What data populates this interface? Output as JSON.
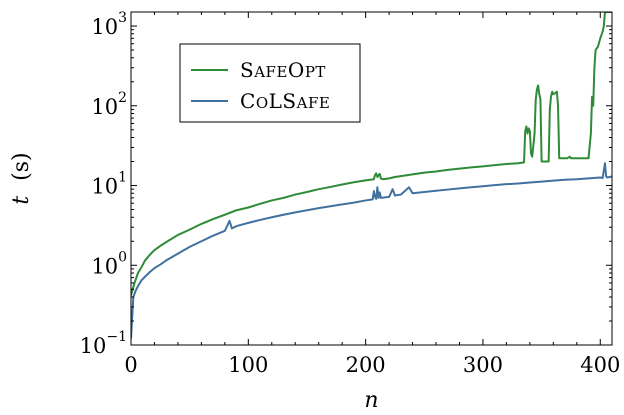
{
  "chart_data": {
    "type": "line",
    "xlabel": "n",
    "ylabel_var": "t",
    "ylabel_unit": "(s)",
    "xlim": [
      0,
      410
    ],
    "ylim": [
      0.1,
      1500
    ],
    "yscale": "log",
    "grid": false,
    "legend_position": "top-left",
    "x_ticks": [
      {
        "value": 0,
        "label": "0"
      },
      {
        "value": 100,
        "label": "100"
      },
      {
        "value": 200,
        "label": "200"
      },
      {
        "value": 300,
        "label": "300"
      },
      {
        "value": 400,
        "label": "400"
      }
    ],
    "y_ticks": [
      {
        "value": 0.1,
        "base": "10",
        "exp": "−1"
      },
      {
        "value": 1,
        "base": "10",
        "exp": "0"
      },
      {
        "value": 10,
        "base": "10",
        "exp": "1"
      },
      {
        "value": 100,
        "base": "10",
        "exp": "2"
      },
      {
        "value": 1000,
        "base": "10",
        "exp": "3"
      }
    ],
    "series": [
      {
        "name": "SafeOpt",
        "color": "#2e8b37",
        "points": [
          [
            0,
            0.42
          ],
          [
            3,
            0.6
          ],
          [
            6,
            0.8
          ],
          [
            9,
            0.95
          ],
          [
            12,
            1.15
          ],
          [
            16,
            1.35
          ],
          [
            20,
            1.55
          ],
          [
            25,
            1.75
          ],
          [
            30,
            1.95
          ],
          [
            40,
            2.4
          ],
          [
            50,
            2.8
          ],
          [
            60,
            3.3
          ],
          [
            70,
            3.8
          ],
          [
            80,
            4.3
          ],
          [
            90,
            4.9
          ],
          [
            100,
            5.3
          ],
          [
            110,
            5.9
          ],
          [
            120,
            6.5
          ],
          [
            130,
            7.0
          ],
          [
            140,
            7.7
          ],
          [
            150,
            8.3
          ],
          [
            160,
            9.0
          ],
          [
            170,
            9.6
          ],
          [
            180,
            10.3
          ],
          [
            190,
            11.0
          ],
          [
            200,
            11.6
          ],
          [
            207,
            12.0
          ],
          [
            208,
            13.5
          ],
          [
            209,
            14.2
          ],
          [
            210,
            12.8
          ],
          [
            212,
            14.0
          ],
          [
            213,
            12.2
          ],
          [
            215,
            12.0
          ],
          [
            220,
            12.3
          ],
          [
            225,
            12.8
          ],
          [
            230,
            13.1
          ],
          [
            240,
            13.8
          ],
          [
            250,
            14.5
          ],
          [
            260,
            15.0
          ],
          [
            270,
            15.7
          ],
          [
            280,
            16.3
          ],
          [
            290,
            16.9
          ],
          [
            300,
            17.4
          ],
          [
            310,
            18.0
          ],
          [
            320,
            18.6
          ],
          [
            330,
            19.0
          ],
          [
            335,
            19.5
          ],
          [
            336,
            48
          ],
          [
            337,
            55
          ],
          [
            338,
            45
          ],
          [
            339,
            52
          ],
          [
            340,
            48
          ],
          [
            341,
            25
          ],
          [
            342,
            23
          ],
          [
            343,
            32
          ],
          [
            344,
            45
          ],
          [
            345,
            120
          ],
          [
            346,
            160
          ],
          [
            347,
            180
          ],
          [
            348,
            140
          ],
          [
            349,
            120
          ],
          [
            350,
            20
          ],
          [
            352,
            20
          ],
          [
            356,
            20
          ],
          [
            357,
            90
          ],
          [
            358,
            130
          ],
          [
            359,
            150
          ],
          [
            360,
            140
          ],
          [
            362,
            145
          ],
          [
            363,
            150
          ],
          [
            364,
            100
          ],
          [
            365,
            22
          ],
          [
            367,
            22
          ],
          [
            369,
            22
          ],
          [
            372,
            22
          ],
          [
            374,
            23
          ],
          [
            375,
            22
          ],
          [
            380,
            22
          ],
          [
            390,
            22
          ],
          [
            392,
            45
          ],
          [
            393,
            130
          ],
          [
            394,
            100
          ],
          [
            395,
            300
          ],
          [
            396,
            500
          ],
          [
            398,
            550
          ],
          [
            400,
            700
          ],
          [
            402,
            850
          ],
          [
            403,
            1000
          ],
          [
            404,
            1500
          ],
          [
            410,
            1500
          ]
        ]
      },
      {
        "name": "ColSafe",
        "color": "#41729f",
        "points": [
          [
            0,
            0.12
          ],
          [
            2,
            0.4
          ],
          [
            4,
            0.48
          ],
          [
            6,
            0.55
          ],
          [
            9,
            0.65
          ],
          [
            12,
            0.72
          ],
          [
            16,
            0.82
          ],
          [
            20,
            0.92
          ],
          [
            25,
            1.02
          ],
          [
            30,
            1.15
          ],
          [
            40,
            1.4
          ],
          [
            50,
            1.7
          ],
          [
            60,
            2.0
          ],
          [
            70,
            2.35
          ],
          [
            80,
            2.7
          ],
          [
            84,
            3.6
          ],
          [
            86,
            2.9
          ],
          [
            90,
            3.1
          ],
          [
            100,
            3.4
          ],
          [
            110,
            3.7
          ],
          [
            120,
            4.0
          ],
          [
            130,
            4.3
          ],
          [
            140,
            4.6
          ],
          [
            150,
            4.9
          ],
          [
            160,
            5.2
          ],
          [
            170,
            5.5
          ],
          [
            180,
            5.8
          ],
          [
            190,
            6.1
          ],
          [
            200,
            6.5
          ],
          [
            206,
            6.7
          ],
          [
            207,
            8.5
          ],
          [
            208,
            7.2
          ],
          [
            209,
            6.8
          ],
          [
            210,
            9.5
          ],
          [
            211,
            7.0
          ],
          [
            212,
            8.2
          ],
          [
            213,
            7.0
          ],
          [
            220,
            7.2
          ],
          [
            223,
            9.0
          ],
          [
            225,
            7.5
          ],
          [
            230,
            7.7
          ],
          [
            237,
            9.5
          ],
          [
            240,
            8.0
          ],
          [
            250,
            8.3
          ],
          [
            260,
            8.6
          ],
          [
            270,
            8.9
          ],
          [
            280,
            9.2
          ],
          [
            290,
            9.5
          ],
          [
            300,
            9.8
          ],
          [
            310,
            10.1
          ],
          [
            320,
            10.4
          ],
          [
            330,
            10.6
          ],
          [
            340,
            10.9
          ],
          [
            350,
            11.2
          ],
          [
            360,
            11.5
          ],
          [
            370,
            11.8
          ],
          [
            380,
            12.0
          ],
          [
            390,
            12.3
          ],
          [
            400,
            12.6
          ],
          [
            402,
            12.4
          ],
          [
            404,
            19.0
          ],
          [
            405,
            13.0
          ],
          [
            406,
            12.6
          ],
          [
            410,
            13.0
          ]
        ]
      }
    ]
  },
  "legend": {
    "items": [
      {
        "name": "SafeOpt",
        "text_main": "S",
        "text_small": "AFE",
        "text_main2": "O",
        "text_small2": "PT"
      },
      {
        "name": "ColSafe",
        "text_main": "C",
        "text_small": "O",
        "text_main2": "LS",
        "text_small2": "AFE"
      }
    ]
  }
}
